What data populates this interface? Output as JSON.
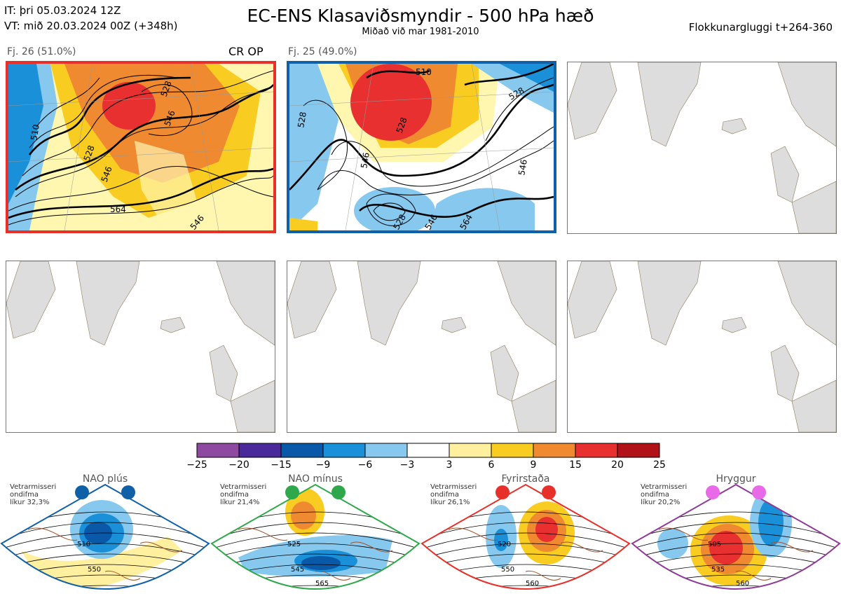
{
  "header": {
    "it_line": "IT: þri 05.03.2024 12Z",
    "vt_line": "VT: mið 20.03.2024 00Z  (+348h)",
    "title": "EC-ENS Klasaviðsmyndir - 500 hPa hæð",
    "subtitle": "Miðað við mar 1981-2010",
    "window": "Flokkunargluggi t+264-360"
  },
  "clusters": [
    {
      "label": "Fj. 26 (51.0%)",
      "tag": "CR OP",
      "border": "#e8302a",
      "contours": [
        "510",
        "528",
        "546",
        "564",
        "546",
        "528",
        "546"
      ]
    },
    {
      "label": "Fj. 25 (49.0%)",
      "tag": "",
      "border": "#1060a8",
      "contours": [
        "510",
        "528",
        "528",
        "546",
        "528",
        "546",
        "528",
        "546",
        "564"
      ]
    }
  ],
  "colorbar": {
    "ticks": [
      "−25",
      "−20",
      "−15",
      "−9",
      "−6",
      "−3",
      "3",
      "6",
      "9",
      "15",
      "20",
      "25"
    ],
    "colors": [
      "#8e4aa0",
      "#4a2a9a",
      "#0a58a8",
      "#1a90d8",
      "#86c8ee",
      "#ffffff",
      "#fff0a0",
      "#f8cc20",
      "#f08a30",
      "#e83030",
      "#b01218"
    ]
  },
  "regimes": [
    {
      "name": "NAO plús",
      "note_1": "Vetrarmisseri",
      "note_2": "ondifma",
      "note_3": "líkur 32,3%",
      "color": "#1060a8",
      "dot": "#1060a8",
      "labels": [
        "510",
        "550"
      ]
    },
    {
      "name": "NAO mínus",
      "note_1": "Vetrarmisseri",
      "note_2": "ondifma",
      "note_3": "líkur 21,4%",
      "color": "#2ea84a",
      "dot": "#2ea84a",
      "labels": [
        "525",
        "545",
        "565"
      ]
    },
    {
      "name": "Fyrirstaða",
      "note_1": "Vetrarmisseri",
      "note_2": "ondifma",
      "note_3": "líkur 26,1%",
      "color": "#e8302a",
      "dot": "#e8302a",
      "labels": [
        "520",
        "550",
        "560"
      ]
    },
    {
      "name": "Hryggur",
      "note_1": "Vetrarmisseri",
      "note_2": "ondifma",
      "note_3": "líkur 20,2%",
      "color": "#8e3a98",
      "dot": "#e86ae8",
      "labels": [
        "505",
        "535",
        "560"
      ]
    }
  ]
}
